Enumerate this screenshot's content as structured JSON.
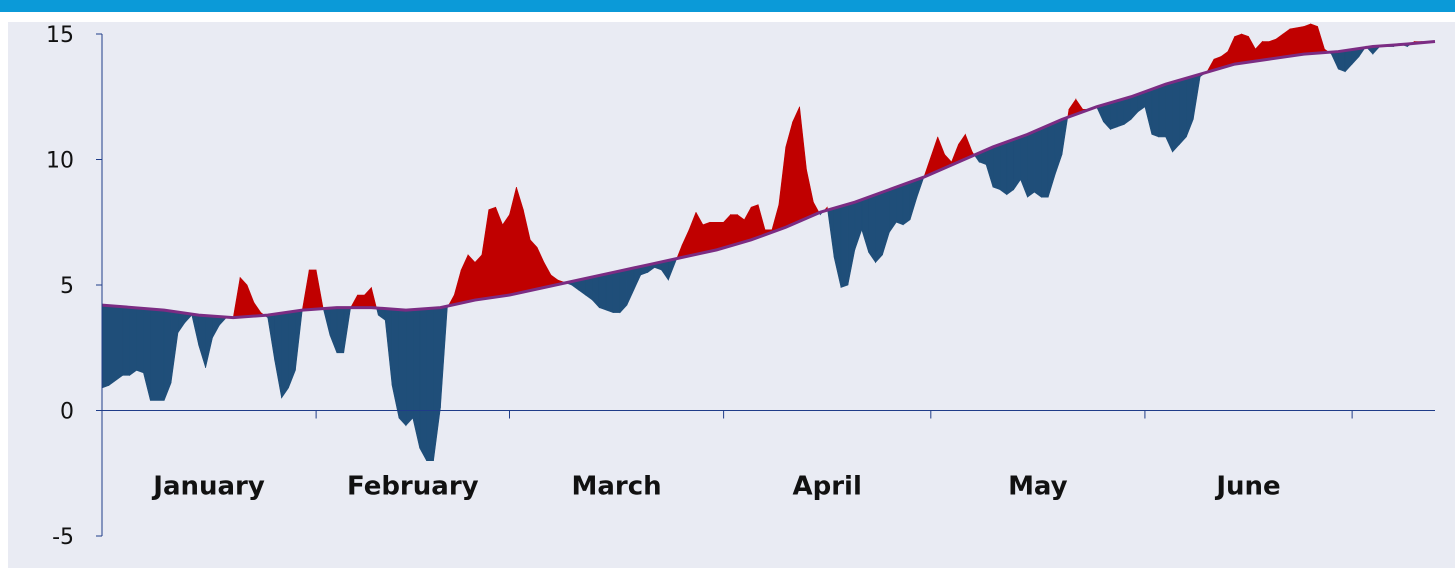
{
  "colors": {
    "top_bar": "#0b9ad8",
    "background": "#e9ebf3",
    "above": "#c00000",
    "below": "#1f4e79",
    "trend_line": "#7b2c83",
    "axis": "#1f3c88"
  },
  "chart_data": {
    "type": "area",
    "title": "",
    "xlabel": "",
    "ylabel": "",
    "ylim": [
      -5,
      15
    ],
    "y_ticks": [
      15,
      10,
      5,
      0,
      -5
    ],
    "x_tick_labels": [
      "January",
      "February",
      "March",
      "April",
      "May",
      "June"
    ],
    "grid": false,
    "legend": "none",
    "x_day_range": [
      1,
      181
    ],
    "series": [
      {
        "role": "actual",
        "points": [
          [
            1,
            0.9
          ],
          [
            2,
            1.0
          ],
          [
            4,
            1.4
          ],
          [
            5,
            1.4
          ],
          [
            6,
            1.6
          ],
          [
            7,
            1.5
          ],
          [
            8,
            0.4
          ],
          [
            10,
            0.4
          ],
          [
            11,
            1.1
          ],
          [
            12,
            3.1
          ],
          [
            13,
            3.5
          ],
          [
            14,
            3.8
          ],
          [
            15,
            2.6
          ],
          [
            16,
            1.7
          ],
          [
            17,
            2.9
          ],
          [
            18,
            3.4
          ],
          [
            19,
            3.7
          ],
          [
            20,
            3.7
          ],
          [
            21,
            5.3
          ],
          [
            22,
            5.0
          ],
          [
            23,
            4.3
          ],
          [
            24,
            3.9
          ],
          [
            25,
            3.7
          ],
          [
            26,
            2.0
          ],
          [
            27,
            0.5
          ],
          [
            28,
            0.9
          ],
          [
            29,
            1.6
          ],
          [
            30,
            4.0
          ],
          [
            31,
            5.6
          ],
          [
            32,
            5.6
          ],
          [
            33,
            4.1
          ],
          [
            34,
            3.0
          ],
          [
            35,
            2.3
          ],
          [
            36,
            2.3
          ],
          [
            37,
            4.1
          ],
          [
            38,
            4.6
          ],
          [
            39,
            4.6
          ],
          [
            40,
            4.9
          ],
          [
            41,
            3.8
          ],
          [
            42,
            3.6
          ],
          [
            43,
            1.0
          ],
          [
            44,
            -0.3
          ],
          [
            45,
            -0.6
          ],
          [
            46,
            -0.3
          ],
          [
            47,
            -1.5
          ],
          [
            48,
            -2.0
          ],
          [
            49,
            -2.0
          ],
          [
            50,
            0.1
          ],
          [
            51,
            4.1
          ],
          [
            52,
            4.6
          ],
          [
            53,
            5.6
          ],
          [
            54,
            6.2
          ],
          [
            55,
            5.9
          ],
          [
            56,
            6.2
          ],
          [
            57,
            8.0
          ],
          [
            58,
            8.1
          ],
          [
            59,
            7.4
          ],
          [
            60,
            7.8
          ],
          [
            61,
            8.9
          ],
          [
            62,
            8.0
          ],
          [
            63,
            6.8
          ],
          [
            64,
            6.5
          ],
          [
            65,
            5.9
          ],
          [
            66,
            5.4
          ],
          [
            67,
            5.2
          ],
          [
            68,
            5.1
          ],
          [
            69,
            5.0
          ],
          [
            70,
            4.8
          ],
          [
            71,
            4.6
          ],
          [
            72,
            4.4
          ],
          [
            73,
            4.1
          ],
          [
            74,
            4.0
          ],
          [
            75,
            3.9
          ],
          [
            76,
            3.9
          ],
          [
            77,
            4.2
          ],
          [
            78,
            4.8
          ],
          [
            79,
            5.4
          ],
          [
            80,
            5.5
          ],
          [
            81,
            5.7
          ],
          [
            82,
            5.6
          ],
          [
            83,
            5.2
          ],
          [
            84,
            5.9
          ],
          [
            85,
            6.6
          ],
          [
            86,
            7.2
          ],
          [
            87,
            7.9
          ],
          [
            88,
            7.4
          ],
          [
            89,
            7.5
          ],
          [
            90,
            7.5
          ],
          [
            91,
            7.5
          ],
          [
            92,
            7.8
          ],
          [
            93,
            7.8
          ],
          [
            94,
            7.6
          ],
          [
            95,
            8.1
          ],
          [
            96,
            8.2
          ],
          [
            97,
            7.2
          ],
          [
            98,
            7.2
          ],
          [
            99,
            8.2
          ],
          [
            100,
            10.5
          ],
          [
            101,
            11.5
          ],
          [
            102,
            12.1
          ],
          [
            103,
            9.6
          ],
          [
            104,
            8.3
          ],
          [
            105,
            7.8
          ],
          [
            106,
            8.1
          ],
          [
            107,
            6.1
          ],
          [
            108,
            4.9
          ],
          [
            109,
            5.0
          ],
          [
            110,
            6.4
          ],
          [
            111,
            7.2
          ],
          [
            112,
            6.3
          ],
          [
            113,
            5.9
          ],
          [
            114,
            6.2
          ],
          [
            115,
            7.1
          ],
          [
            116,
            7.5
          ],
          [
            117,
            7.4
          ],
          [
            118,
            7.6
          ],
          [
            119,
            8.5
          ],
          [
            120,
            9.3
          ],
          [
            121,
            10.1
          ],
          [
            122,
            10.9
          ],
          [
            123,
            10.2
          ],
          [
            124,
            9.9
          ],
          [
            125,
            10.6
          ],
          [
            126,
            11.0
          ],
          [
            127,
            10.3
          ],
          [
            128,
            9.9
          ],
          [
            129,
            9.8
          ],
          [
            130,
            8.9
          ],
          [
            131,
            8.8
          ],
          [
            132,
            8.6
          ],
          [
            133,
            8.8
          ],
          [
            134,
            9.2
          ],
          [
            135,
            8.5
          ],
          [
            136,
            8.7
          ],
          [
            137,
            8.5
          ],
          [
            138,
            8.5
          ],
          [
            139,
            9.4
          ],
          [
            140,
            10.2
          ],
          [
            141,
            12.0
          ],
          [
            142,
            12.4
          ],
          [
            143,
            12.0
          ],
          [
            144,
            12.0
          ],
          [
            145,
            12.1
          ],
          [
            146,
            11.5
          ],
          [
            147,
            11.2
          ],
          [
            148,
            11.3
          ],
          [
            149,
            11.4
          ],
          [
            150,
            11.6
          ],
          [
            151,
            11.9
          ],
          [
            152,
            12.1
          ],
          [
            153,
            11.0
          ],
          [
            154,
            10.9
          ],
          [
            155,
            10.9
          ],
          [
            156,
            10.3
          ],
          [
            157,
            10.6
          ],
          [
            158,
            10.9
          ],
          [
            159,
            11.6
          ],
          [
            160,
            13.3
          ],
          [
            161,
            13.5
          ],
          [
            162,
            14.0
          ],
          [
            163,
            14.1
          ],
          [
            164,
            14.3
          ],
          [
            165,
            14.9
          ],
          [
            166,
            15.0
          ],
          [
            167,
            14.9
          ],
          [
            168,
            14.4
          ],
          [
            169,
            14.7
          ],
          [
            170,
            14.7
          ],
          [
            171,
            14.8
          ],
          [
            172,
            15.0
          ],
          [
            173,
            15.2
          ],
          [
            175,
            15.3
          ],
          [
            176,
            15.4
          ],
          [
            177,
            15.3
          ],
          [
            178,
            14.4
          ],
          [
            179,
            14.2
          ],
          [
            180,
            13.6
          ],
          [
            181,
            13.5
          ],
          [
            182,
            13.8
          ],
          [
            183,
            14.1
          ],
          [
            184,
            14.5
          ],
          [
            185,
            14.2
          ],
          [
            186,
            14.5
          ],
          [
            187,
            14.5
          ],
          [
            188,
            14.5
          ],
          [
            189,
            14.6
          ],
          [
            190,
            14.5
          ],
          [
            191,
            14.7
          ],
          [
            192,
            14.7
          ],
          [
            193,
            14.7
          ],
          [
            194,
            14.7
          ]
        ]
      },
      {
        "role": "trend",
        "points": [
          [
            1,
            4.2
          ],
          [
            10,
            4.0
          ],
          [
            15,
            3.8
          ],
          [
            20,
            3.7
          ],
          [
            25,
            3.8
          ],
          [
            30,
            4.0
          ],
          [
            35,
            4.1
          ],
          [
            40,
            4.1
          ],
          [
            45,
            4.0
          ],
          [
            50,
            4.1
          ],
          [
            55,
            4.4
          ],
          [
            60,
            4.6
          ],
          [
            65,
            4.9
          ],
          [
            70,
            5.2
          ],
          [
            75,
            5.5
          ],
          [
            80,
            5.8
          ],
          [
            85,
            6.1
          ],
          [
            90,
            6.4
          ],
          [
            95,
            6.8
          ],
          [
            100,
            7.3
          ],
          [
            105,
            7.9
          ],
          [
            110,
            8.3
          ],
          [
            115,
            8.8
          ],
          [
            120,
            9.3
          ],
          [
            125,
            9.9
          ],
          [
            130,
            10.5
          ],
          [
            135,
            11.0
          ],
          [
            140,
            11.6
          ],
          [
            145,
            12.1
          ],
          [
            150,
            12.5
          ],
          [
            155,
            13.0
          ],
          [
            160,
            13.4
          ],
          [
            165,
            13.8
          ],
          [
            170,
            14.0
          ],
          [
            175,
            14.2
          ],
          [
            180,
            14.3
          ],
          [
            185,
            14.5
          ],
          [
            190,
            14.6
          ],
          [
            194,
            14.7
          ]
        ]
      }
    ]
  }
}
